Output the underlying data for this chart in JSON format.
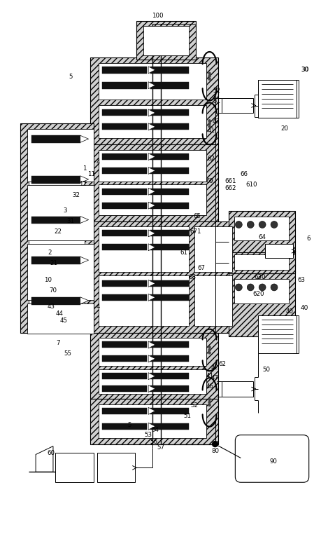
{
  "bg_color": "#ffffff",
  "line_color": "#000000",
  "gray_hatch": "#888888"
}
